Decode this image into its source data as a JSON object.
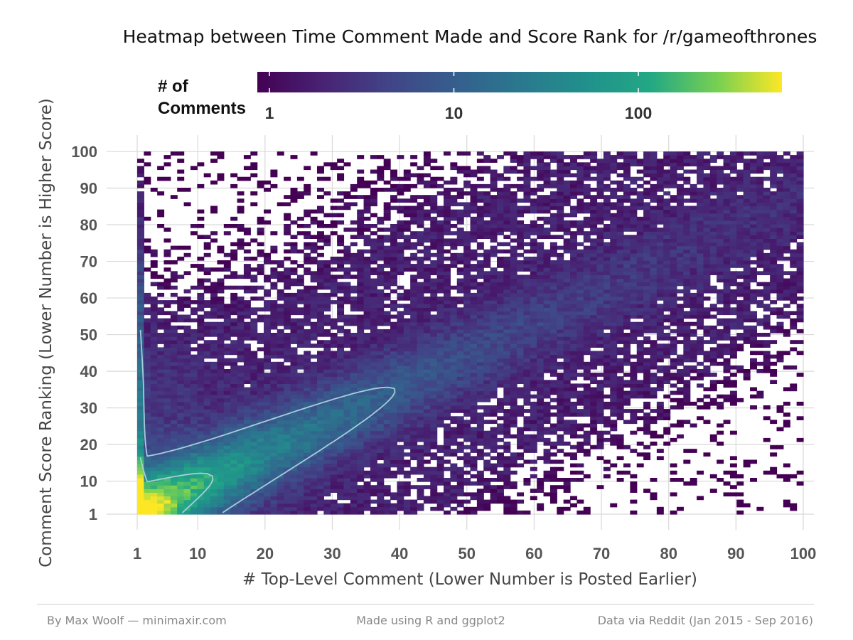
{
  "chart_data": {
    "type": "heatmap",
    "title": "Heatmap between Time Comment Made and Score Rank for /r/gameofthrones",
    "xlabel": "# Top-Level Comment (Lower Number is Posted Earlier)",
    "ylabel": "Comment Score Ranking (Lower Number is Higher Score)",
    "xlim": [
      1,
      100
    ],
    "ylim": [
      1,
      100
    ],
    "x_ticks": [
      1,
      10,
      20,
      30,
      40,
      50,
      60,
      70,
      80,
      90,
      100
    ],
    "y_ticks": [
      1,
      10,
      20,
      30,
      40,
      50,
      60,
      70,
      80,
      90,
      100
    ],
    "x_tick_labels": [
      "1",
      "10",
      "20",
      "30",
      "40",
      "50",
      "60",
      "70",
      "80",
      "90",
      "100"
    ],
    "y_tick_labels": [
      "1",
      "10",
      "20",
      "30",
      "40",
      "50",
      "60",
      "70",
      "80",
      "90",
      "100"
    ],
    "grid": true,
    "colorscale": "viridis",
    "color_scale_type": "log",
    "value_range": [
      1,
      600
    ],
    "legend": {
      "title_line1": "# of",
      "title_line2": "Comments",
      "placement": "top",
      "ticks": [
        1,
        10,
        100
      ],
      "tick_labels": [
        "1",
        "10",
        "100"
      ]
    },
    "contour_levels": [
      10,
      100
    ],
    "structure": {
      "peak": {
        "x": 1,
        "y": 1,
        "count": 600
      },
      "ridge": "diagonal band from (1,1) rising to about (45,40) then fanning out toward (100,100)",
      "sparse_regions": [
        "top-left (x<30, y>70)",
        "bottom-right (x>65, y<25)"
      ]
    }
  },
  "footer": {
    "left": "By Max Woolf — minimaxir.com",
    "center": "Made using R and ggplot2",
    "right": "Data via Reddit (Jan 2015 - Sep 2016)"
  },
  "colors": {
    "contour": "#a9cbdc",
    "grid": "#d9d9d9",
    "footer_rule": "#cccccc"
  }
}
